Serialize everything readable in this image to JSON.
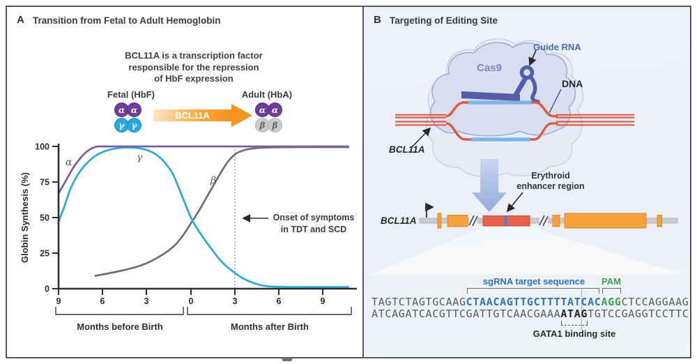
{
  "panel_a": {
    "label": "A",
    "title": "Transition from Fetal to Adult Hemoglobin",
    "note_lines": [
      "BCL11A is a transcription factor",
      "responsible for the repression",
      "of HbF expression"
    ],
    "fetal_label": "Fetal (HbF)",
    "adult_label": "Adult (HbA)",
    "arrow_label": "BCL11A",
    "fetal_subunits": [
      "α",
      "α",
      "γ",
      "γ"
    ],
    "adult_subunits": [
      "α",
      "α",
      "β",
      "β"
    ],
    "annotation_lines": [
      "Onset of symptoms",
      "in TDT and SCD"
    ],
    "axis_group_labels": [
      "Months before Birth",
      "Months after Birth"
    ],
    "colors": {
      "alpha_subunit": "#6e3d9b",
      "gamma_subunit": "#29a9e0",
      "beta_subunit": "#c9cacc",
      "arrow_orange": "#f79421"
    }
  },
  "chart_data": {
    "type": "line",
    "title": "Transition from Fetal to Adult Hemoglobin",
    "ylabel": "Globin Synthesis (%)",
    "xlabel_groups": [
      "Months before Birth",
      "Months after Birth"
    ],
    "x_unit": "months relative to birth",
    "xlim": [
      -9,
      10.7
    ],
    "ylim": [
      0,
      100
    ],
    "grid": false,
    "yticks": [
      "100",
      "75",
      "50",
      "25",
      "0"
    ],
    "xticks": [
      "9",
      "6",
      "3",
      "0",
      "3",
      "6",
      "9"
    ],
    "xtick_months": [
      -9,
      -6,
      -3,
      0,
      3,
      6,
      9
    ],
    "annotation": {
      "text": "Onset of symptoms in TDT and SCD",
      "x_months": 3
    },
    "series": [
      {
        "name": "beta-globin",
        "label": "β",
        "color": "#6d6e71",
        "points": [
          [
            -6.5,
            9
          ],
          [
            -6,
            10
          ],
          [
            -5,
            12
          ],
          [
            -4,
            14.5
          ],
          [
            -3.5,
            16
          ],
          [
            -3,
            18
          ],
          [
            -2.5,
            20.5
          ],
          [
            -2,
            23.5
          ],
          [
            -1.5,
            27
          ],
          [
            -1,
            31.5
          ],
          [
            -0.5,
            38
          ],
          [
            0,
            46
          ],
          [
            0.5,
            54
          ],
          [
            1,
            63
          ],
          [
            1.5,
            72
          ],
          [
            2,
            81
          ],
          [
            2.5,
            89
          ],
          [
            3,
            94.5
          ],
          [
            3.5,
            97
          ],
          [
            4,
            98.3
          ],
          [
            5,
            99.2
          ],
          [
            7,
            99.5
          ],
          [
            9,
            99.5
          ],
          [
            10.7,
            99.5
          ]
        ]
      },
      {
        "name": "gamma-globin",
        "label": "γ",
        "color": "#2aa9e0",
        "points": [
          [
            -9,
            47
          ],
          [
            -8.6,
            58
          ],
          [
            -8.2,
            70
          ],
          [
            -7.7,
            80
          ],
          [
            -7.1,
            88
          ],
          [
            -6.4,
            94
          ],
          [
            -5.6,
            97.5
          ],
          [
            -4.8,
            99
          ],
          [
            -4.2,
            99.3
          ],
          [
            -3.6,
            98.8
          ],
          [
            -3,
            97.5
          ],
          [
            -2.4,
            94.5
          ],
          [
            -1.8,
            89
          ],
          [
            -1.2,
            80
          ],
          [
            -0.6,
            65
          ],
          [
            0,
            50
          ],
          [
            0.5,
            41
          ],
          [
            1,
            33.5
          ],
          [
            1.5,
            26.5
          ],
          [
            2,
            20
          ],
          [
            2.5,
            15
          ],
          [
            3,
            11
          ],
          [
            3.5,
            7.5
          ],
          [
            4,
            5
          ],
          [
            4.5,
            3.2
          ],
          [
            5,
            2
          ],
          [
            6,
            1.3
          ],
          [
            8,
            1.2
          ],
          [
            10.7,
            1.2
          ]
        ]
      },
      {
        "name": "alpha-globin",
        "label": "α",
        "color": "#7a5ca8",
        "points": [
          [
            -9,
            67
          ],
          [
            -8.5,
            76
          ],
          [
            -8,
            85
          ],
          [
            -7.5,
            92
          ],
          [
            -7,
            97
          ],
          [
            -6.5,
            99.6
          ],
          [
            -6,
            100
          ],
          [
            -4,
            100
          ],
          [
            -1,
            100
          ],
          [
            2,
            100
          ],
          [
            5,
            100
          ],
          [
            8,
            100
          ],
          [
            10.7,
            100
          ]
        ]
      }
    ]
  },
  "panel_b": {
    "label": "B",
    "title": "Targeting of Editing Site",
    "cas9_label": "Cas9",
    "guide_rna_label": "Guide RNA",
    "dna_label": "DNA",
    "gene_label": "BCL11A",
    "gene_diagram_label": "BCL11A",
    "enhancer_label_lines": [
      "Erythroid",
      "enhancer region"
    ],
    "sequence": {
      "sgrna_label": "sgRNA target sequence",
      "pam_label": "PAM",
      "gata1_label": "GATA1 binding site",
      "top_strand": {
        "pre": "TAGTCTAGTGCAAG",
        "sgrna": "CTAACAGTTGCTTTTATCAC",
        "pam": "AGG",
        "post": "CTCCAGGAAG"
      },
      "bottom_strand": {
        "pre": "ATCAGATCACGTTCGATTGTCAACGAAA",
        "gata1": "ATAG",
        "post": "TGTCCGAGGTCCTTC"
      },
      "colors": {
        "sgrna": "#2f74b9",
        "pam": "#3fa14f",
        "gata1": "#232325",
        "default": "#595a5c"
      }
    }
  }
}
